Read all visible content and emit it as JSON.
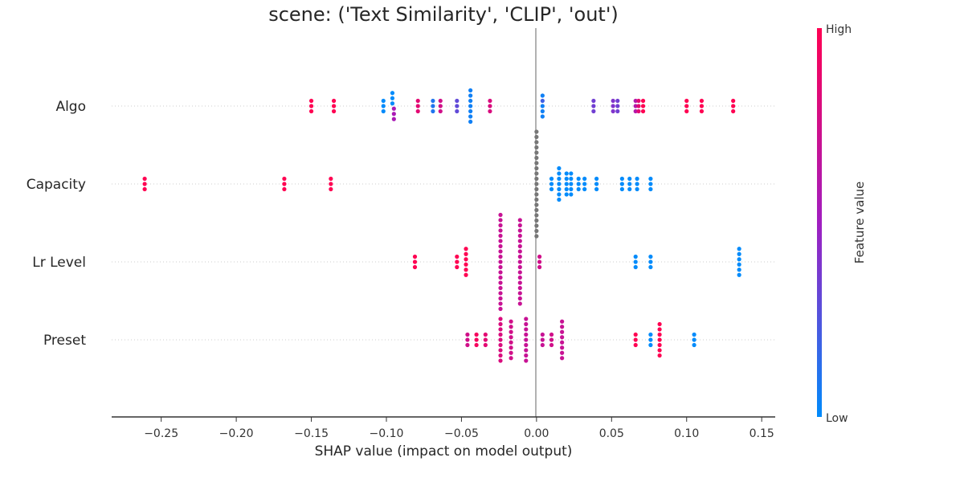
{
  "chart_data": {
    "type": "scatter",
    "subtype": "shap-beeswarm",
    "title": "scene: ('Text Similarity', 'CLIP', 'out')",
    "xlabel": "SHAP value (impact on model output)",
    "xlim": [
      -0.283,
      0.159
    ],
    "x_ticks": [
      -0.25,
      -0.2,
      -0.15,
      -0.1,
      -0.05,
      0.0,
      0.05,
      0.1,
      0.15
    ],
    "x_tick_labels": [
      "−0.25",
      "−0.20",
      "−0.15",
      "−0.10",
      "−0.05",
      "0.00",
      "0.05",
      "0.10",
      "0.15"
    ],
    "zero_line": true,
    "colorbar": {
      "title": "Feature value",
      "high_label": "High",
      "low_label": "Low",
      "low_color": "#008bfb",
      "high_color": "#ff0052"
    },
    "missing_color": "#777777",
    "features": [
      {
        "name": "Algo",
        "points": [
          [
            -0.15,
            1
          ],
          [
            -0.15,
            1
          ],
          [
            -0.15,
            1
          ],
          [
            -0.135,
            1
          ],
          [
            -0.135,
            1
          ],
          [
            -0.135,
            1
          ],
          [
            -0.102,
            0
          ],
          [
            -0.102,
            0
          ],
          [
            -0.102,
            0
          ],
          [
            -0.096,
            0
          ],
          [
            -0.096,
            0
          ],
          [
            -0.096,
            0
          ],
          [
            -0.095,
            0.55
          ],
          [
            -0.095,
            0.55
          ],
          [
            -0.095,
            0.55
          ],
          [
            -0.079,
            0.85
          ],
          [
            -0.079,
            0.85
          ],
          [
            -0.079,
            0.85
          ],
          [
            -0.069,
            0.1
          ],
          [
            -0.069,
            0.1
          ],
          [
            -0.069,
            0.1
          ],
          [
            -0.064,
            0.75
          ],
          [
            -0.064,
            0.75
          ],
          [
            -0.064,
            0.75
          ],
          [
            -0.053,
            0.3
          ],
          [
            -0.053,
            0.3
          ],
          [
            -0.053,
            0.3
          ],
          [
            -0.044,
            0.05
          ],
          [
            -0.044,
            0.05
          ],
          [
            -0.044,
            0.05
          ],
          [
            -0.044,
            0.05
          ],
          [
            -0.044,
            0.05
          ],
          [
            -0.044,
            0.05
          ],
          [
            -0.044,
            0.05
          ],
          [
            -0.031,
            0.8
          ],
          [
            -0.031,
            0.8
          ],
          [
            -0.031,
            0.8
          ],
          [
            0.004,
            0.05
          ],
          [
            0.004,
            0.2
          ],
          [
            0.004,
            0.05
          ],
          [
            0.004,
            0.05
          ],
          [
            0.004,
            0.05
          ],
          [
            0.038,
            0.35
          ],
          [
            0.038,
            0.35
          ],
          [
            0.038,
            0.35
          ],
          [
            0.051,
            0.4
          ],
          [
            0.051,
            0.4
          ],
          [
            0.051,
            0.4
          ],
          [
            0.054,
            0.35
          ],
          [
            0.054,
            0.35
          ],
          [
            0.054,
            0.35
          ],
          [
            0.066,
            0.6
          ],
          [
            0.066,
            0.6
          ],
          [
            0.066,
            0.6
          ],
          [
            0.068,
            0.85
          ],
          [
            0.068,
            0.85
          ],
          [
            0.068,
            0.85
          ],
          [
            0.071,
            1
          ],
          [
            0.071,
            1
          ],
          [
            0.071,
            1
          ],
          [
            0.1,
            1
          ],
          [
            0.1,
            1
          ],
          [
            0.1,
            1
          ],
          [
            0.11,
            1
          ],
          [
            0.11,
            1
          ],
          [
            0.11,
            1
          ],
          [
            0.131,
            1
          ],
          [
            0.131,
            1
          ],
          [
            0.131,
            1
          ]
        ]
      },
      {
        "name": "Capacity",
        "points": [
          [
            -0.261,
            1
          ],
          [
            -0.261,
            1
          ],
          [
            -0.261,
            1
          ],
          [
            -0.168,
            1
          ],
          [
            -0.168,
            1
          ],
          [
            -0.168,
            1
          ],
          [
            -0.137,
            1
          ],
          [
            -0.137,
            1
          ],
          [
            -0.137,
            1
          ],
          [
            0.0,
            null
          ],
          [
            0.0,
            null
          ],
          [
            0.0,
            null
          ],
          [
            0.0,
            null
          ],
          [
            0.0,
            null
          ],
          [
            0.0,
            null
          ],
          [
            0.0,
            null
          ],
          [
            0.0,
            null
          ],
          [
            0.0,
            null
          ],
          [
            0.0,
            null
          ],
          [
            0.0,
            null
          ],
          [
            0.0,
            null
          ],
          [
            0.0,
            null
          ],
          [
            0.0,
            null
          ],
          [
            0.0,
            null
          ],
          [
            0.0,
            null
          ],
          [
            0.0,
            null
          ],
          [
            0.0,
            null
          ],
          [
            0.0,
            null
          ],
          [
            0.0,
            null
          ],
          [
            0.0,
            null
          ],
          [
            0.01,
            0
          ],
          [
            0.01,
            0
          ],
          [
            0.01,
            0
          ],
          [
            0.015,
            0
          ],
          [
            0.015,
            0
          ],
          [
            0.015,
            0
          ],
          [
            0.015,
            0
          ],
          [
            0.015,
            0
          ],
          [
            0.015,
            0
          ],
          [
            0.015,
            0
          ],
          [
            0.02,
            0
          ],
          [
            0.02,
            0
          ],
          [
            0.02,
            0
          ],
          [
            0.02,
            0
          ],
          [
            0.02,
            0
          ],
          [
            0.023,
            0
          ],
          [
            0.023,
            0
          ],
          [
            0.023,
            0
          ],
          [
            0.023,
            0
          ],
          [
            0.023,
            0
          ],
          [
            0.028,
            0
          ],
          [
            0.028,
            0
          ],
          [
            0.028,
            0
          ],
          [
            0.032,
            0
          ],
          [
            0.032,
            0
          ],
          [
            0.032,
            0
          ],
          [
            0.04,
            0
          ],
          [
            0.04,
            0
          ],
          [
            0.04,
            0
          ],
          [
            0.057,
            0
          ],
          [
            0.057,
            0
          ],
          [
            0.057,
            0
          ],
          [
            0.062,
            0
          ],
          [
            0.062,
            0
          ],
          [
            0.062,
            0
          ],
          [
            0.067,
            0
          ],
          [
            0.067,
            0
          ],
          [
            0.067,
            0
          ],
          [
            0.076,
            0
          ],
          [
            0.076,
            0
          ],
          [
            0.076,
            0
          ]
        ]
      },
      {
        "name": "Lr Level",
        "points": [
          [
            -0.081,
            1
          ],
          [
            -0.081,
            1
          ],
          [
            -0.081,
            1
          ],
          [
            -0.053,
            1
          ],
          [
            -0.053,
            1
          ],
          [
            -0.053,
            1
          ],
          [
            -0.047,
            1
          ],
          [
            -0.047,
            1
          ],
          [
            -0.047,
            1
          ],
          [
            -0.047,
            1
          ],
          [
            -0.047,
            1
          ],
          [
            -0.047,
            1
          ],
          [
            -0.024,
            0.7
          ],
          [
            -0.024,
            0.7
          ],
          [
            -0.024,
            0.7
          ],
          [
            -0.024,
            0.7
          ],
          [
            -0.024,
            0.7
          ],
          [
            -0.024,
            0.7
          ],
          [
            -0.024,
            0.7
          ],
          [
            -0.024,
            0.7
          ],
          [
            -0.024,
            0.7
          ],
          [
            -0.024,
            0.7
          ],
          [
            -0.024,
            0.7
          ],
          [
            -0.024,
            0.7
          ],
          [
            -0.024,
            0.7
          ],
          [
            -0.024,
            0.7
          ],
          [
            -0.024,
            0.7
          ],
          [
            -0.024,
            0.7
          ],
          [
            -0.024,
            0.7
          ],
          [
            -0.024,
            0.7
          ],
          [
            -0.024,
            0.7
          ],
          [
            -0.011,
            0.7
          ],
          [
            -0.011,
            0.7
          ],
          [
            -0.011,
            0.7
          ],
          [
            -0.011,
            0.7
          ],
          [
            -0.011,
            0.7
          ],
          [
            -0.011,
            0.7
          ],
          [
            -0.011,
            0.7
          ],
          [
            -0.011,
            0.7
          ],
          [
            -0.011,
            0.7
          ],
          [
            -0.011,
            0.7
          ],
          [
            -0.011,
            0.7
          ],
          [
            -0.011,
            0.7
          ],
          [
            -0.011,
            0.7
          ],
          [
            -0.011,
            0.7
          ],
          [
            -0.011,
            0.7
          ],
          [
            -0.011,
            0.7
          ],
          [
            -0.011,
            0.7
          ],
          [
            0.002,
            0.75
          ],
          [
            0.002,
            0.75
          ],
          [
            0.002,
            0.75
          ],
          [
            0.066,
            0
          ],
          [
            0.066,
            0
          ],
          [
            0.066,
            0
          ],
          [
            0.076,
            0
          ],
          [
            0.076,
            0
          ],
          [
            0.076,
            0
          ],
          [
            0.135,
            0
          ],
          [
            0.135,
            0
          ],
          [
            0.135,
            0
          ],
          [
            0.135,
            0
          ],
          [
            0.135,
            0
          ],
          [
            0.135,
            0
          ]
        ]
      },
      {
        "name": "Preset",
        "points": [
          [
            -0.046,
            0.75
          ],
          [
            -0.046,
            0.75
          ],
          [
            -0.046,
            0.75
          ],
          [
            -0.04,
            0.95
          ],
          [
            -0.04,
            0.95
          ],
          [
            -0.04,
            0.95
          ],
          [
            -0.034,
            0.85
          ],
          [
            -0.034,
            0.85
          ],
          [
            -0.034,
            0.85
          ],
          [
            -0.024,
            0.8
          ],
          [
            -0.024,
            0.8
          ],
          [
            -0.024,
            0.8
          ],
          [
            -0.024,
            0.8
          ],
          [
            -0.024,
            0.8
          ],
          [
            -0.024,
            0.8
          ],
          [
            -0.024,
            0.8
          ],
          [
            -0.024,
            0.8
          ],
          [
            -0.024,
            0.8
          ],
          [
            -0.017,
            0.75
          ],
          [
            -0.017,
            0.75
          ],
          [
            -0.017,
            0.75
          ],
          [
            -0.017,
            0.75
          ],
          [
            -0.017,
            0.75
          ],
          [
            -0.017,
            0.75
          ],
          [
            -0.017,
            0.75
          ],
          [
            -0.017,
            0.75
          ],
          [
            -0.007,
            0.7
          ],
          [
            -0.007,
            0.7
          ],
          [
            -0.007,
            0.7
          ],
          [
            -0.007,
            0.7
          ],
          [
            -0.007,
            0.7
          ],
          [
            -0.007,
            0.7
          ],
          [
            -0.007,
            0.7
          ],
          [
            -0.007,
            0.7
          ],
          [
            -0.007,
            0.7
          ],
          [
            0.004,
            0.7
          ],
          [
            0.004,
            0.7
          ],
          [
            0.004,
            0.7
          ],
          [
            0.01,
            0.75
          ],
          [
            0.01,
            0.75
          ],
          [
            0.01,
            0.75
          ],
          [
            0.017,
            0.7
          ],
          [
            0.017,
            0.7
          ],
          [
            0.017,
            0.7
          ],
          [
            0.017,
            0.7
          ],
          [
            0.017,
            0.7
          ],
          [
            0.017,
            0.7
          ],
          [
            0.017,
            0.7
          ],
          [
            0.017,
            0.7
          ],
          [
            0.066,
            1
          ],
          [
            0.066,
            1
          ],
          [
            0.066,
            1
          ],
          [
            0.076,
            0
          ],
          [
            0.076,
            0
          ],
          [
            0.076,
            0
          ],
          [
            0.082,
            1
          ],
          [
            0.082,
            1
          ],
          [
            0.082,
            1
          ],
          [
            0.082,
            1
          ],
          [
            0.082,
            1
          ],
          [
            0.082,
            1
          ],
          [
            0.082,
            1
          ],
          [
            0.105,
            0
          ],
          [
            0.105,
            0
          ],
          [
            0.105,
            0
          ]
        ]
      }
    ]
  }
}
